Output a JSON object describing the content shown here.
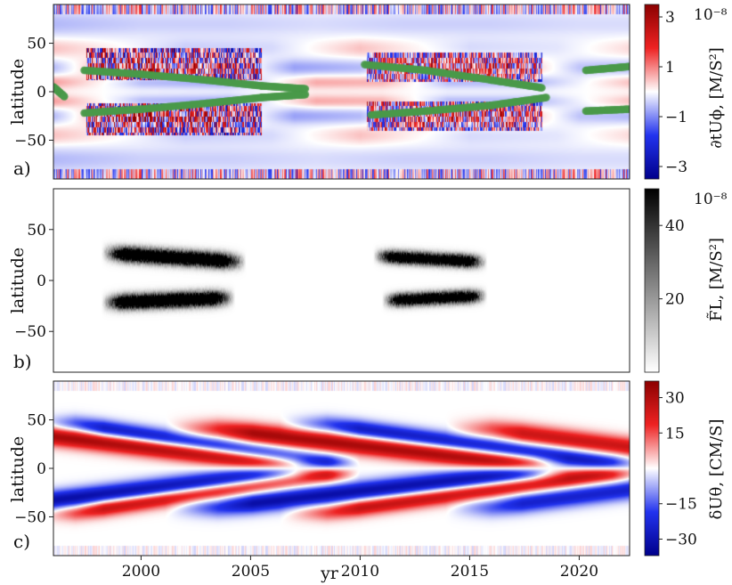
{
  "chart_data": [
    {
      "type": "heatmap",
      "panel_label": "a)",
      "ylabel": "latitude",
      "colorbar_label": "∂tUϕ, [M/S²]",
      "colorbar_exponent": "10⁻⁸",
      "colorbar_ticks": [
        "3",
        "1",
        "−1",
        "−3"
      ],
      "colorbar_tick_values": [
        3,
        1,
        -1,
        -3
      ],
      "colorbar_range": [
        -3.5,
        3.5
      ],
      "colormap": [
        "#00008b",
        "#2233ee",
        "#ffffff",
        "#ee2222",
        "#8b0000"
      ],
      "overlay_color": "#4a9a4a",
      "yticks": [
        "50",
        "0",
        "−50"
      ],
      "ytick_values": [
        50,
        0,
        -50
      ],
      "ylim": [
        -90,
        90
      ],
      "xlim": [
        1996,
        2022.3
      ],
      "bands": [
        {
          "lat": 70,
          "width": 14,
          "values": [
            [
              1996,
              -0.6
            ],
            [
              2000,
              -0.4
            ],
            [
              2004,
              -0.4
            ],
            [
              2008,
              -0.3
            ],
            [
              2012,
              -0.4
            ],
            [
              2016,
              -0.4
            ],
            [
              2020,
              -0.3
            ],
            [
              2022.3,
              -0.3
            ]
          ]
        },
        {
          "lat": 45,
          "width": 10,
          "values": [
            [
              1996,
              0.5
            ],
            [
              2002,
              -0.4
            ],
            [
              2006,
              -0.3
            ],
            [
              2010,
              0.5
            ],
            [
              2015,
              -0.3
            ],
            [
              2019,
              -0.2
            ],
            [
              2022.3,
              0.3
            ]
          ]
        },
        {
          "lat": 25,
          "width": 9,
          "values": [
            [
              1996,
              -0.6
            ],
            [
              1999,
              1.2
            ],
            [
              2003,
              1.0
            ],
            [
              2007,
              -0.8
            ],
            [
              2010,
              -0.6
            ],
            [
              2013,
              1.0
            ],
            [
              2017,
              0.8
            ],
            [
              2020,
              -0.5
            ],
            [
              2022.3,
              -0.6
            ]
          ]
        },
        {
          "lat": 10,
          "width": 7,
          "values": [
            [
              1996,
              0.8
            ],
            [
              2000,
              -0.6
            ],
            [
              2004,
              -0.8
            ],
            [
              2008,
              0.7
            ],
            [
              2011,
              0.6
            ],
            [
              2014,
              -0.6
            ],
            [
              2018,
              -0.6
            ],
            [
              2022.3,
              0.5
            ]
          ]
        },
        {
          "lat": -10,
          "width": 7,
          "values": [
            [
              1996,
              0.8
            ],
            [
              2000,
              -0.6
            ],
            [
              2004,
              -0.8
            ],
            [
              2008,
              0.7
            ],
            [
              2011,
              0.6
            ],
            [
              2014,
              -0.6
            ],
            [
              2018,
              -0.6
            ],
            [
              2022.3,
              0.5
            ]
          ]
        },
        {
          "lat": -25,
          "width": 9,
          "values": [
            [
              1996,
              -0.6
            ],
            [
              1999,
              1.2
            ],
            [
              2003,
              1.0
            ],
            [
              2007,
              -0.8
            ],
            [
              2010,
              -0.6
            ],
            [
              2013,
              1.0
            ],
            [
              2017,
              0.8
            ],
            [
              2020,
              -0.5
            ],
            [
              2022.3,
              -0.6
            ]
          ]
        },
        {
          "lat": -45,
          "width": 10,
          "values": [
            [
              1996,
              0.5
            ],
            [
              2002,
              -0.4
            ],
            [
              2006,
              -0.3
            ],
            [
              2010,
              0.5
            ],
            [
              2015,
              -0.3
            ],
            [
              2019,
              -0.2
            ],
            [
              2022.3,
              0.3
            ]
          ]
        },
        {
          "lat": -70,
          "width": 14,
          "values": [
            [
              1996,
              -0.6
            ],
            [
              2000,
              -0.4
            ],
            [
              2004,
              -0.4
            ],
            [
              2008,
              -0.3
            ],
            [
              2012,
              -0.4
            ],
            [
              2016,
              -0.4
            ],
            [
              2020,
              -0.3
            ],
            [
              2022.3,
              -0.3
            ]
          ]
        }
      ],
      "noisy_activity_regions": [
        {
          "x": [
            1997.5,
            2005.5
          ],
          "lat": [
            12,
            45
          ],
          "amplitude": 3
        },
        {
          "x": [
            1997.5,
            2005.5
          ],
          "lat": [
            -45,
            -12
          ],
          "amplitude": 3
        },
        {
          "x": [
            2010.3,
            2018.3
          ],
          "lat": [
            10,
            40
          ],
          "amplitude": 2.5
        },
        {
          "x": [
            2010.3,
            2018.3
          ],
          "lat": [
            -40,
            -10
          ],
          "amplitude": 2.5
        }
      ],
      "overlay_tracks": [
        {
          "points": [
            [
              1997.4,
              22
            ],
            [
              2000,
              18
            ],
            [
              2003,
              12
            ],
            [
              2005.5,
              6
            ],
            [
              2007.5,
              3
            ]
          ]
        },
        {
          "points": [
            [
              1997.4,
              -22
            ],
            [
              2000,
              -18
            ],
            [
              2003,
              -12
            ],
            [
              2005.5,
              -6
            ],
            [
              2007.5,
              -3
            ]
          ]
        },
        {
          "points": [
            [
              1996,
              5
            ],
            [
              1996.5,
              -5
            ]
          ]
        },
        {
          "points": [
            [
              2010.2,
              28
            ],
            [
              2013,
              22
            ],
            [
              2016,
              12
            ],
            [
              2018.3,
              4
            ]
          ]
        },
        {
          "points": [
            [
              2010.5,
              -24
            ],
            [
              2013,
              -20
            ],
            [
              2016,
              -14
            ],
            [
              2018.5,
              -6
            ]
          ]
        },
        {
          "points": [
            [
              2020.3,
              22
            ],
            [
              2022.3,
              26
            ]
          ]
        },
        {
          "points": [
            [
              2020.3,
              -20
            ],
            [
              2022.3,
              -18
            ]
          ]
        }
      ]
    },
    {
      "type": "heatmap",
      "panel_label": "b)",
      "ylabel": "latitude",
      "colorbar_label": "F̃L, [M/S²]",
      "colorbar_exponent": "10⁻⁸",
      "colorbar_ticks": [
        "40",
        "20"
      ],
      "colorbar_tick_values": [
        40,
        20
      ],
      "colorbar_range": [
        0,
        50
      ],
      "colormap": [
        "#ffffff",
        "#000000"
      ],
      "yticks": [
        "50",
        "0",
        "−50"
      ],
      "ytick_values": [
        50,
        0,
        -50
      ],
      "ylim": [
        -90,
        90
      ],
      "xlim": [
        1996,
        2022.3
      ],
      "blobs": [
        {
          "x": [
            1998.2,
            2004.8
          ],
          "lat_start": 27,
          "lat_end": 18,
          "width": 7,
          "peak": 50
        },
        {
          "x": [
            1998.2,
            2004.3
          ],
          "lat_start": -22,
          "lat_end": -17,
          "width": 7,
          "peak": 50
        },
        {
          "x": [
            2010.6,
            2015.8
          ],
          "lat_start": 24,
          "lat_end": 18,
          "width": 6,
          "peak": 45
        },
        {
          "x": [
            2011.0,
            2015.8
          ],
          "lat_start": -20,
          "lat_end": -15,
          "width": 6,
          "peak": 45
        }
      ]
    },
    {
      "type": "heatmap",
      "panel_label": "c)",
      "ylabel": "latitude",
      "xlabel": "yr",
      "colorbar_label": "δUθ, [CM/S]",
      "colorbar_ticks": [
        "30",
        "15",
        "−15",
        "−30"
      ],
      "colorbar_tick_values": [
        30,
        15,
        -15,
        -30
      ],
      "colorbar_range": [
        -37,
        37
      ],
      "colormap": [
        "#00008b",
        "#2233ee",
        "#ffffff",
        "#ee2222",
        "#8b0000"
      ],
      "yticks": [
        "50",
        "0",
        "−50"
      ],
      "ytick_values": [
        50,
        0,
        -50
      ],
      "ylim": [
        -90,
        90
      ],
      "xticks": [
        "2000",
        "2005",
        "2010",
        "2015",
        "2020"
      ],
      "xtick_values": [
        2000,
        2005,
        2010,
        2015,
        2020
      ],
      "xlim": [
        1996,
        2022.3
      ],
      "wedges": [
        {
          "t0": 1993.5,
          "t1": 2008.5,
          "lat0": 40,
          "lat1": 0,
          "sign": 1,
          "width": 10,
          "peak": 33
        },
        {
          "t0": 1993.5,
          "t1": 2008.5,
          "lat0": -40,
          "lat1": 0,
          "sign": -1,
          "width": 10,
          "peak": 33
        },
        {
          "t0": 1997.0,
          "t1": 2010.0,
          "lat0": 45,
          "lat1": 0,
          "sign": -1,
          "width": 9,
          "peak": 30
        },
        {
          "t0": 1997.0,
          "t1": 2010.0,
          "lat0": -45,
          "lat1": 0,
          "sign": 1,
          "width": 9,
          "peak": 30
        },
        {
          "t0": 2003.5,
          "t1": 2019.5,
          "lat0": 40,
          "lat1": 0,
          "sign": 1,
          "width": 10,
          "peak": 32
        },
        {
          "t0": 2003.5,
          "t1": 2019.5,
          "lat0": -40,
          "lat1": 0,
          "sign": -1,
          "width": 10,
          "peak": 32
        },
        {
          "t0": 2008.5,
          "t1": 2023.0,
          "lat0": 45,
          "lat1": 0,
          "sign": -1,
          "width": 9,
          "peak": 28
        },
        {
          "t0": 2008.5,
          "t1": 2023.0,
          "lat0": -45,
          "lat1": 0,
          "sign": 1,
          "width": 9,
          "peak": 28
        },
        {
          "t0": 2016.0,
          "t1": 2030.0,
          "lat0": 40,
          "lat1": 0,
          "sign": 1,
          "width": 10,
          "peak": 25
        },
        {
          "t0": 2016.0,
          "t1": 2030.0,
          "lat0": -40,
          "lat1": 0,
          "sign": -1,
          "width": 10,
          "peak": 25
        }
      ]
    }
  ]
}
